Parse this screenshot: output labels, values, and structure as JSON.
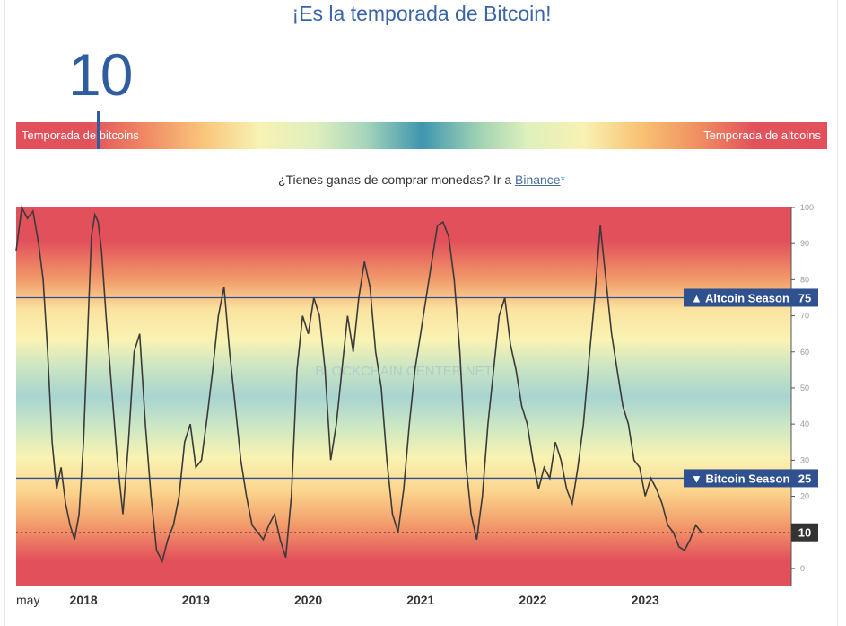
{
  "title": "¡Es la temporada de Bitcoin!",
  "current_index": "10",
  "gauge": {
    "left_label": "Temporada de bitcoins",
    "right_label": "Temporada de altcoins"
  },
  "buy_prompt": {
    "text": "¿Tienes ganas de comprar monedas? Ir a ",
    "link": "Binance",
    "asterisk": "*"
  },
  "watermark": "BLOCKCHAIN CENTER.NET",
  "colors": {
    "title": "#3a64a8",
    "index": "#2f5ea0",
    "season_label_bg": "#2f5190",
    "current_label_bg": "#333333",
    "line": "#3a3a3a",
    "red": "#e2515b",
    "yellow": "#f9f3b3",
    "teal": "#a9d4d0"
  },
  "chart_data": {
    "type": "line",
    "x_tick_labels": [
      "may",
      "2018",
      "2019",
      "2020",
      "2021",
      "2022",
      "2023"
    ],
    "y_ticks": [
      0,
      10,
      20,
      30,
      40,
      50,
      60,
      70,
      80,
      90,
      100
    ],
    "ylim": [
      0,
      100
    ],
    "xlim": [
      2017.4,
      2024.3
    ],
    "reference_lines": [
      {
        "label": "▲ Altcoin Season",
        "value": 75
      },
      {
        "label": "▼ Bitcoin Season",
        "value": 25
      }
    ],
    "current_value": 10,
    "series": [
      {
        "x": [
          2017.4,
          2017.45,
          2017.5,
          2017.55,
          2017.6,
          2017.64,
          2017.68,
          2017.72,
          2017.76,
          2017.8,
          2017.84,
          2017.88,
          2017.92,
          2017.96,
          2018.0,
          2018.03,
          2018.07,
          2018.1,
          2018.13,
          2018.16,
          2018.2,
          2018.25,
          2018.3,
          2018.35,
          2018.4,
          2018.45,
          2018.5,
          2018.55,
          2018.6,
          2018.65,
          2018.7,
          2018.75,
          2018.8,
          2018.85,
          2018.9,
          2018.95,
          2019.0,
          2019.05,
          2019.1,
          2019.15,
          2019.2,
          2019.25,
          2019.3,
          2019.35,
          2019.4,
          2019.45,
          2019.5,
          2019.55,
          2019.6,
          2019.65,
          2019.7,
          2019.75,
          2019.8,
          2019.85,
          2019.9,
          2019.95,
          2020.0,
          2020.05,
          2020.1,
          2020.15,
          2020.2,
          2020.25,
          2020.3,
          2020.35,
          2020.4,
          2020.45,
          2020.5,
          2020.55,
          2020.6,
          2020.65,
          2020.7,
          2020.75,
          2020.8,
          2020.85,
          2020.9,
          2020.95,
          2021.0,
          2021.05,
          2021.1,
          2021.15,
          2021.2,
          2021.25,
          2021.3,
          2021.35,
          2021.4,
          2021.45,
          2021.5,
          2021.55,
          2021.6,
          2021.65,
          2021.7,
          2021.75,
          2021.8,
          2021.85,
          2021.9,
          2021.95,
          2022.0,
          2022.05,
          2022.1,
          2022.15,
          2022.2,
          2022.25,
          2022.3,
          2022.35,
          2022.4,
          2022.45,
          2022.5,
          2022.55,
          2022.6,
          2022.65,
          2022.7,
          2022.75,
          2022.8,
          2022.85,
          2022.9,
          2022.95,
          2023.0,
          2023.05,
          2023.1,
          2023.15,
          2023.2,
          2023.25,
          2023.3,
          2023.35,
          2023.4,
          2023.45,
          2023.5
        ],
        "y": [
          88,
          100,
          97,
          99,
          90,
          80,
          60,
          35,
          22,
          28,
          18,
          12,
          8,
          15,
          35,
          60,
          92,
          98,
          96,
          88,
          70,
          50,
          30,
          15,
          35,
          60,
          65,
          40,
          20,
          5,
          2,
          8,
          12,
          20,
          35,
          40,
          28,
          30,
          42,
          55,
          70,
          78,
          60,
          45,
          30,
          20,
          12,
          10,
          8,
          12,
          15,
          8,
          3,
          20,
          55,
          70,
          65,
          75,
          70,
          55,
          30,
          40,
          55,
          70,
          60,
          75,
          85,
          78,
          60,
          50,
          30,
          15,
          10,
          22,
          40,
          55,
          65,
          75,
          85,
          95,
          96,
          92,
          80,
          60,
          30,
          15,
          8,
          20,
          40,
          55,
          70,
          75,
          62,
          55,
          45,
          40,
          30,
          22,
          28,
          25,
          35,
          30,
          22,
          18,
          28,
          40,
          58,
          75,
          95,
          80,
          65,
          55,
          45,
          40,
          30,
          28,
          20,
          25,
          22,
          18,
          12,
          10,
          6,
          5,
          8,
          12,
          10
        ]
      }
    ]
  }
}
